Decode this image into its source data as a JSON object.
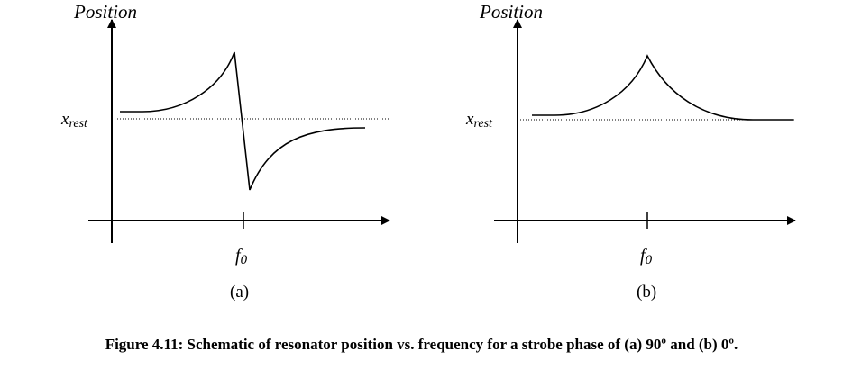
{
  "panels": [
    {
      "id": "a",
      "y_axis_label": "Position",
      "rest_label": "x",
      "rest_label_sub": "rest",
      "x_tick_label": "f",
      "x_tick_sub": "0",
      "panel_label": "(a)",
      "strobe_phase_deg": 90
    },
    {
      "id": "b",
      "y_axis_label": "Position",
      "rest_label": "x",
      "rest_label_sub": "rest",
      "x_tick_label": "f",
      "x_tick_sub": "0",
      "panel_label": "(b)",
      "strobe_phase_deg": 0
    }
  ],
  "caption": "Figure 4.11: Schematic of resonator position vs. frequency for a strobe phase of (a) 90º and (b) 0º."
}
